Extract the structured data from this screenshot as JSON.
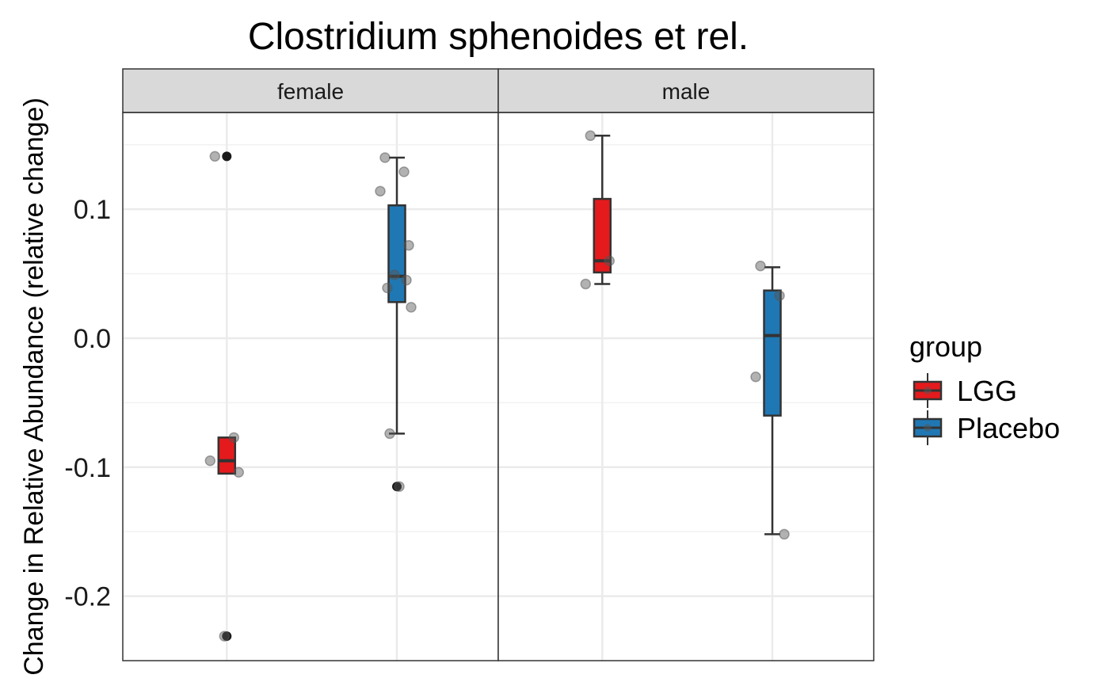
{
  "chart_data": {
    "type": "box",
    "title": "Clostridium sphenoides et rel.",
    "ylabel": "Change in Relative Abundance (relative change)",
    "xlabel": "",
    "ylim": [
      -0.25,
      0.175
    ],
    "y_ticks": [
      "0.1",
      "0.0",
      "-0.1",
      "-0.2"
    ],
    "y_tick_values": [
      0.1,
      0.0,
      -0.1,
      -0.2
    ],
    "grid": true,
    "legend": {
      "title": "group",
      "placement": "right",
      "entries": [
        {
          "label": "LGG",
          "color": "#e41a1c"
        },
        {
          "label": "Placebo",
          "color": "#1f78b4"
        }
      ]
    },
    "panels": [
      {
        "label": "female",
        "boxes": [
          {
            "group": "LGG",
            "q1": -0.105,
            "median": -0.095,
            "q3": -0.077,
            "whisker_low": null,
            "whisker_high": null,
            "outliers": [
              0.141,
              -0.231
            ],
            "points": [
              0.141,
              -0.077,
              -0.095,
              -0.104,
              -0.231
            ]
          },
          {
            "group": "Placebo",
            "q1": 0.028,
            "median": 0.048,
            "q3": 0.103,
            "whisker_low": -0.074,
            "whisker_high": 0.14,
            "outliers": [
              -0.115
            ],
            "points": [
              0.14,
              0.129,
              0.114,
              0.072,
              0.049,
              0.045,
              0.039,
              0.024,
              -0.074,
              -0.115
            ]
          }
        ]
      },
      {
        "label": "male",
        "boxes": [
          {
            "group": "LGG",
            "q1": 0.051,
            "median": 0.06,
            "q3": 0.108,
            "whisker_low": 0.042,
            "whisker_high": 0.157,
            "outliers": [],
            "points": [
              0.157,
              0.06,
              0.042
            ]
          },
          {
            "group": "Placebo",
            "q1": -0.06,
            "median": 0.002,
            "q3": 0.037,
            "whisker_low": -0.152,
            "whisker_high": 0.055,
            "outliers": [],
            "points": [
              0.056,
              0.033,
              -0.03,
              -0.152
            ]
          }
        ]
      }
    ]
  }
}
